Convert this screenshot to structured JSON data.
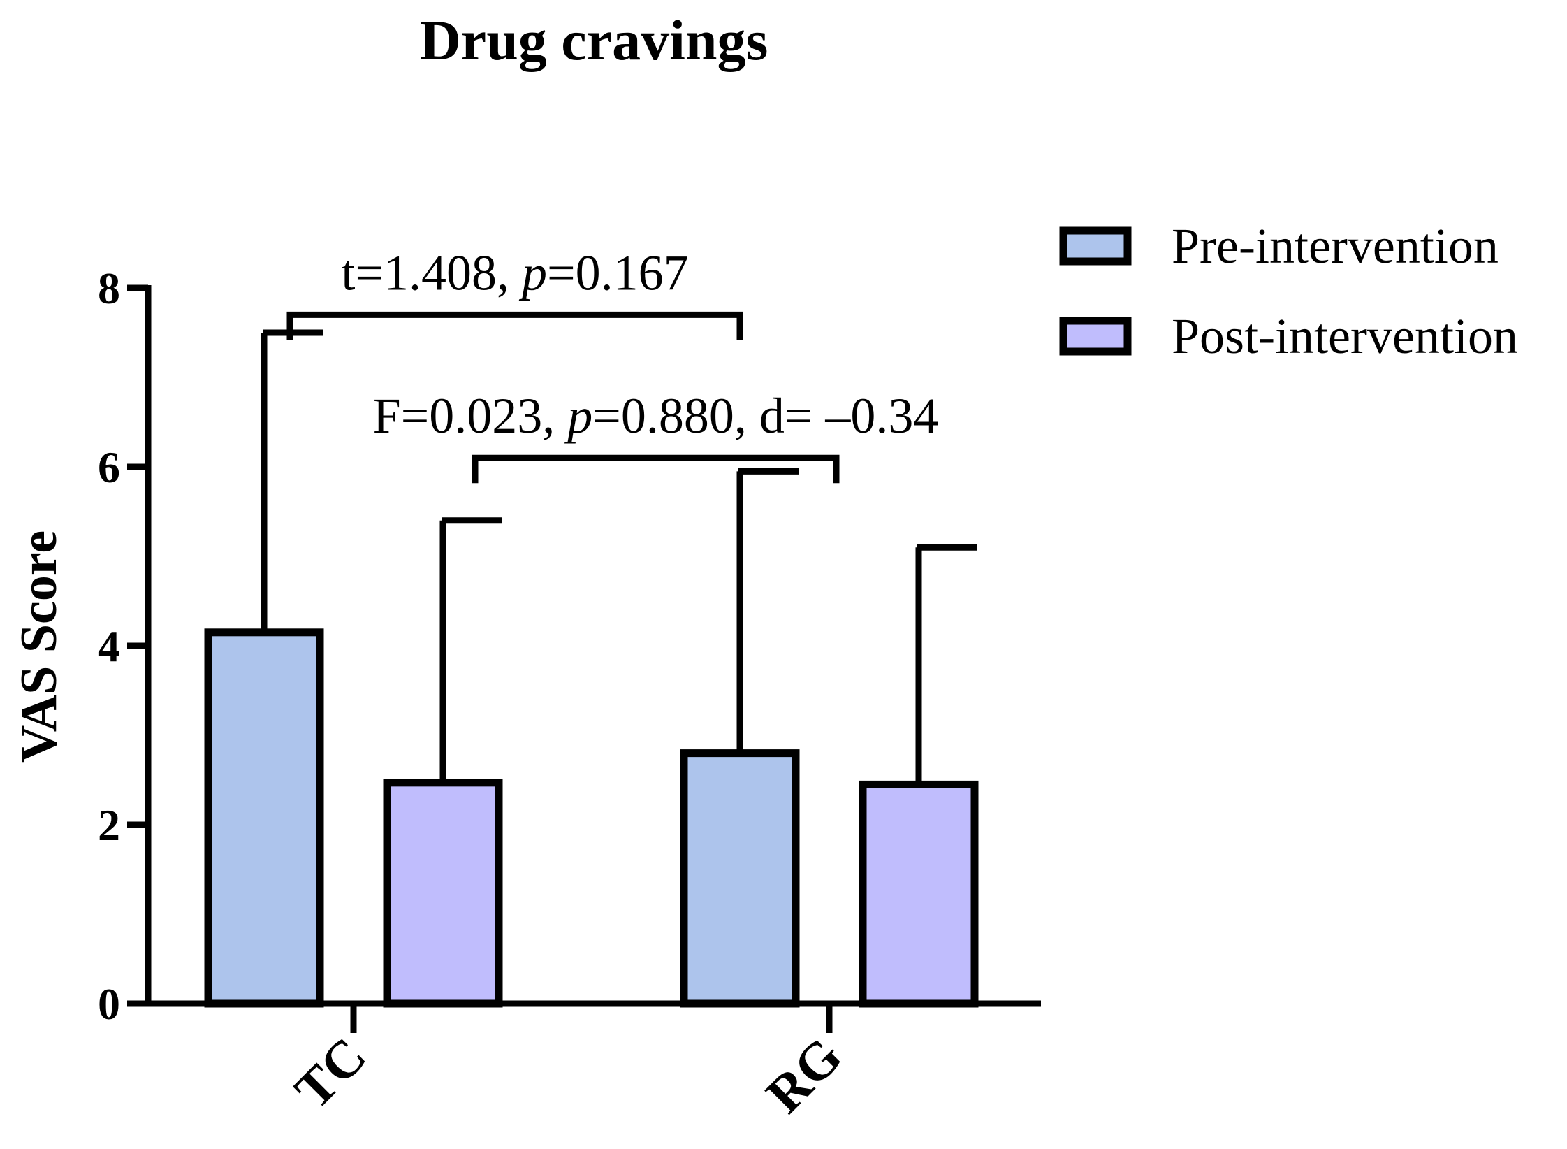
{
  "chart_data": {
    "type": "bar",
    "title": "Drug cravings",
    "ylabel": "VAS Score",
    "xlabel": "",
    "ylim": [
      0,
      8
    ],
    "yticks": [
      0,
      2,
      4,
      6,
      8
    ],
    "ytick_labels": [
      "0",
      "2",
      "4",
      "6",
      "8"
    ],
    "categories": [
      "TC",
      "RG"
    ],
    "series": [
      {
        "name": "Pre-intervention",
        "color": "#adc4ec",
        "values": [
          4.15,
          2.8
        ],
        "error_upper": [
          7.5,
          5.95
        ]
      },
      {
        "name": "Post-intervention",
        "color": "#c0bdfd",
        "values": [
          2.47,
          2.45
        ],
        "error_upper": [
          5.4,
          5.1
        ]
      }
    ],
    "legend_position": "top-right",
    "annotations": [
      {
        "id": "t_test",
        "text_parts": [
          {
            "text": "t=1.408,  ",
            "italic": false
          },
          {
            "text": "p",
            "italic": true
          },
          {
            "text": "=0.167",
            "italic": false
          }
        ],
        "from": {
          "category": "TC",
          "series": "Pre-intervention"
        },
        "to": {
          "category": "RG",
          "series": "Pre-intervention"
        },
        "level": 7.7
      },
      {
        "id": "f_test",
        "text_parts": [
          {
            "text": "F=0.023, ",
            "italic": false
          },
          {
            "text": "p",
            "italic": true
          },
          {
            "text": "=0.880, d= –0.34",
            "italic": false
          }
        ],
        "from": {
          "category": "TC",
          "series": "Post-intervention"
        },
        "to": {
          "category": "RG",
          "series": "Post-intervention"
        },
        "level": 6.1
      }
    ]
  }
}
